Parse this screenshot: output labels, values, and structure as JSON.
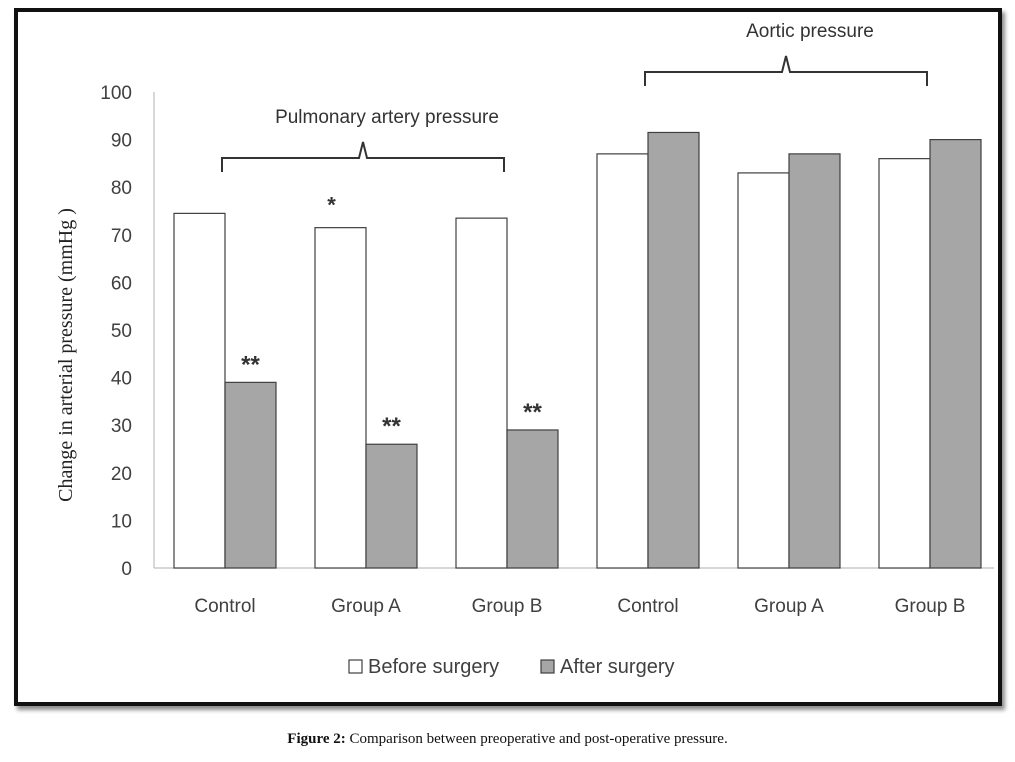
{
  "chart_data": {
    "type": "bar",
    "categories": [
      "Control",
      "Group A",
      "Group B",
      "Control",
      "Group A",
      "Group B"
    ],
    "series": [
      {
        "name": "Before surgery",
        "values": [
          74.5,
          71.5,
          73.5,
          87,
          83,
          86
        ],
        "color": "#ffffff"
      },
      {
        "name": "After surgery",
        "values": [
          39,
          26,
          29,
          91.5,
          87,
          90
        ],
        "color": "#a6a6a6"
      }
    ],
    "annotations": [
      {
        "category_index": 1,
        "series_index": 0,
        "text": "*"
      },
      {
        "category_index": 0,
        "series_index": 1,
        "text": "**"
      },
      {
        "category_index": 1,
        "series_index": 1,
        "text": "**"
      },
      {
        "category_index": 2,
        "series_index": 1,
        "text": "**"
      }
    ],
    "groups": [
      {
        "label": "Pulmonary artery pressure",
        "from": 0,
        "to": 2
      },
      {
        "label": "Aortic pressure",
        "from": 3,
        "to": 5
      }
    ],
    "ylabel": "Change in arterial pressure (mmHg )",
    "ylim": [
      0,
      100
    ],
    "yticks": [
      0,
      10,
      20,
      30,
      40,
      50,
      60,
      70,
      80,
      90,
      100
    ],
    "grid": false,
    "legend_position": "bottom"
  },
  "caption": {
    "label": "Figure 2:",
    "text": "Comparison between preoperative and post-operative pressure."
  }
}
